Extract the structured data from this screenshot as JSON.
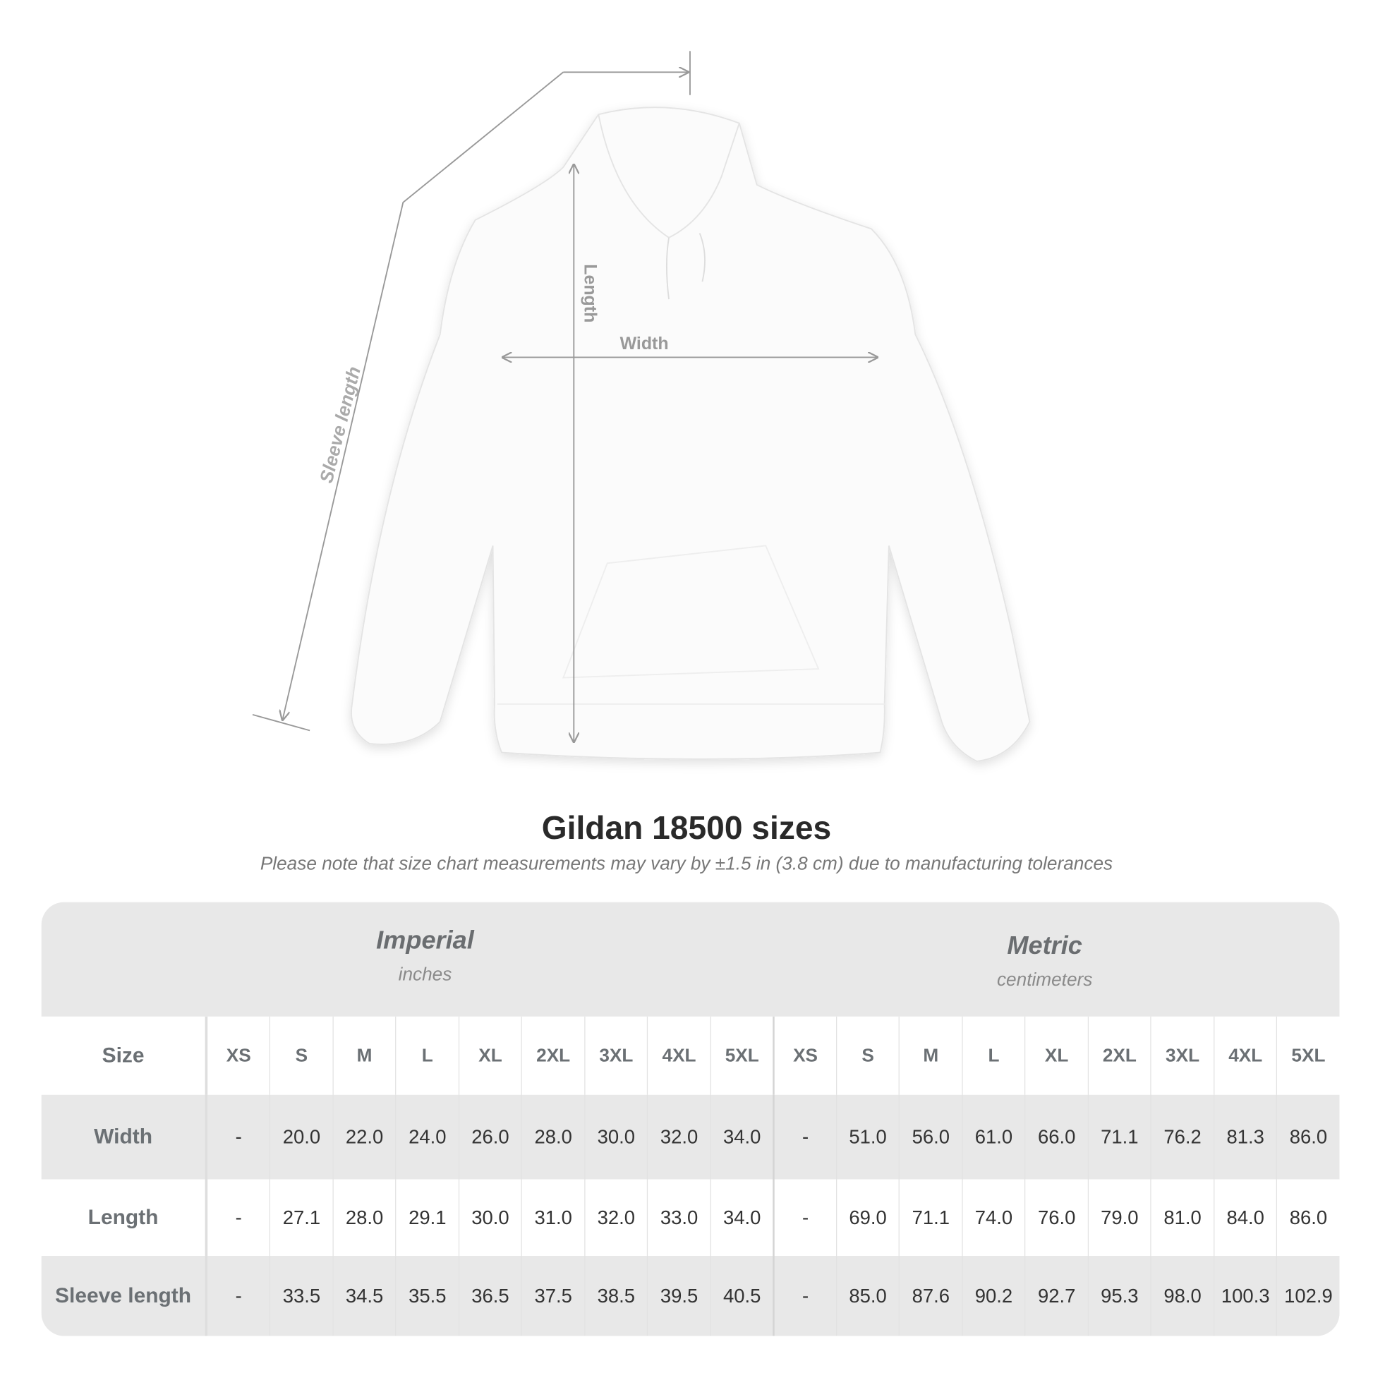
{
  "diagram": {
    "labels": {
      "sleeve": "Sleeve length",
      "length": "Length",
      "width": "Width"
    }
  },
  "title": "Gildan 18500 sizes",
  "note": "Please note that size chart measurements may vary by ±1.5 in (3.8 cm) due to manufacturing tolerances",
  "imperial": {
    "name": "Imperial",
    "unit": "inches"
  },
  "metric": {
    "name": "Metric",
    "unit": "centimeters"
  },
  "size_label": "Size",
  "sizes": [
    "XS",
    "S",
    "M",
    "L",
    "XL",
    "2XL",
    "3XL",
    "4XL",
    "5XL"
  ],
  "rows": [
    {
      "label": "Width",
      "imperial": [
        "-",
        "20.0",
        "22.0",
        "24.0",
        "26.0",
        "28.0",
        "30.0",
        "32.0",
        "34.0"
      ],
      "metric": [
        "-",
        "51.0",
        "56.0",
        "61.0",
        "66.0",
        "71.1",
        "76.2",
        "81.3",
        "86.0"
      ]
    },
    {
      "label": "Length",
      "imperial": [
        "-",
        "27.1",
        "28.0",
        "29.1",
        "30.0",
        "31.0",
        "32.0",
        "33.0",
        "34.0"
      ],
      "metric": [
        "-",
        "69.0",
        "71.1",
        "74.0",
        "76.0",
        "79.0",
        "81.0",
        "84.0",
        "86.0"
      ]
    },
    {
      "label": "Sleeve length",
      "imperial": [
        "-",
        "33.5",
        "34.5",
        "35.5",
        "36.5",
        "37.5",
        "38.5",
        "39.5",
        "40.5"
      ],
      "metric": [
        "-",
        "85.0",
        "87.6",
        "90.2",
        "92.7",
        "95.3",
        "98.0",
        "100.3",
        "102.9"
      ]
    }
  ]
}
